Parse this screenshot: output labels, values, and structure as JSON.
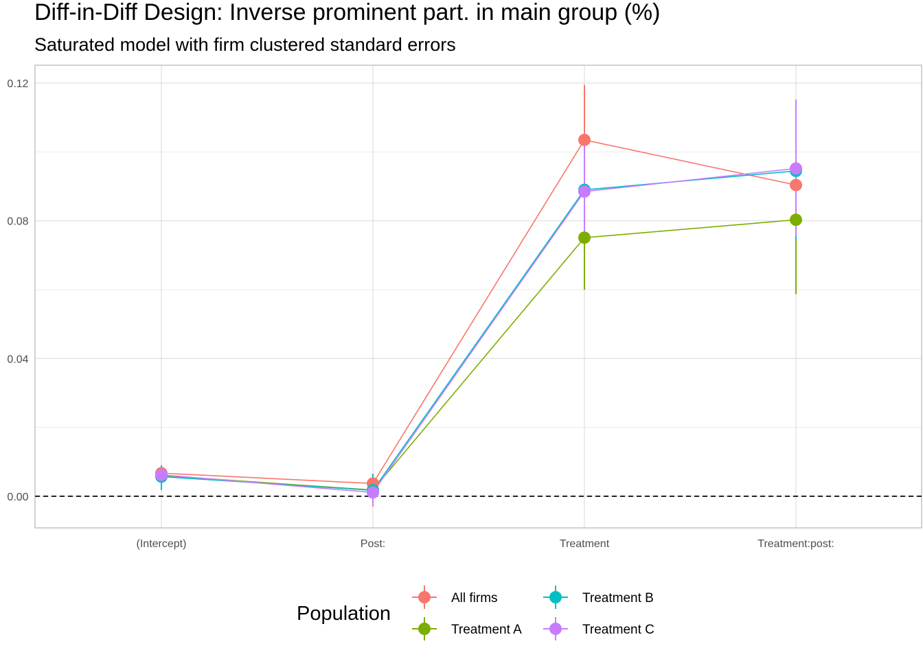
{
  "chart_data": {
    "type": "line",
    "title": "Diff-in-Diff Design: Inverse prominent part. in main group (%)",
    "subtitle": "Saturated model with firm clustered standard errors",
    "xlabel": "",
    "ylabel": "",
    "categories": [
      "(Intercept)",
      "Post:",
      "Treatment",
      "Treatment:post:"
    ],
    "ylim": [
      -0.0092,
      0.1252
    ],
    "yticks": [
      0.0,
      0.04,
      0.08,
      0.12
    ],
    "ytick_labels": [
      "0.00",
      "0.04",
      "0.08",
      "0.12"
    ],
    "grid": true,
    "reference_line": {
      "y": 0.0,
      "style": "dashed"
    },
    "legend": {
      "title": "Population",
      "position": "bottom"
    },
    "series": [
      {
        "name": "All firms",
        "color": "#F8766D",
        "values": [
          0.0067,
          0.0037,
          0.1035,
          0.0904
        ],
        "lower": [
          0.005,
          0.001,
          0.088,
          0.088
        ],
        "upper": [
          0.0085,
          0.0065,
          0.1195,
          0.0935
        ]
      },
      {
        "name": "Treatment A",
        "color": "#7CAE00",
        "values": [
          0.006,
          0.0018,
          0.0751,
          0.0803
        ],
        "lower": [
          0.0045,
          0.0005,
          0.06,
          0.0587
        ],
        "upper": [
          0.0075,
          0.003,
          0.087,
          0.102
        ]
      },
      {
        "name": "Treatment B",
        "color": "#00BFC4",
        "values": [
          0.0057,
          0.0017,
          0.089,
          0.0945
        ],
        "lower": [
          0.0018,
          -0.0015,
          0.076,
          0.0745
        ],
        "upper": [
          0.009,
          0.0065,
          0.101,
          0.112
        ]
      },
      {
        "name": "Treatment C",
        "color": "#C77CFF",
        "values": [
          0.0062,
          0.0011,
          0.0885,
          0.0952
        ],
        "lower": [
          0.004,
          -0.003,
          0.076,
          0.0755
        ],
        "upper": [
          0.0085,
          0.0052,
          0.103,
          0.1152
        ]
      }
    ]
  }
}
